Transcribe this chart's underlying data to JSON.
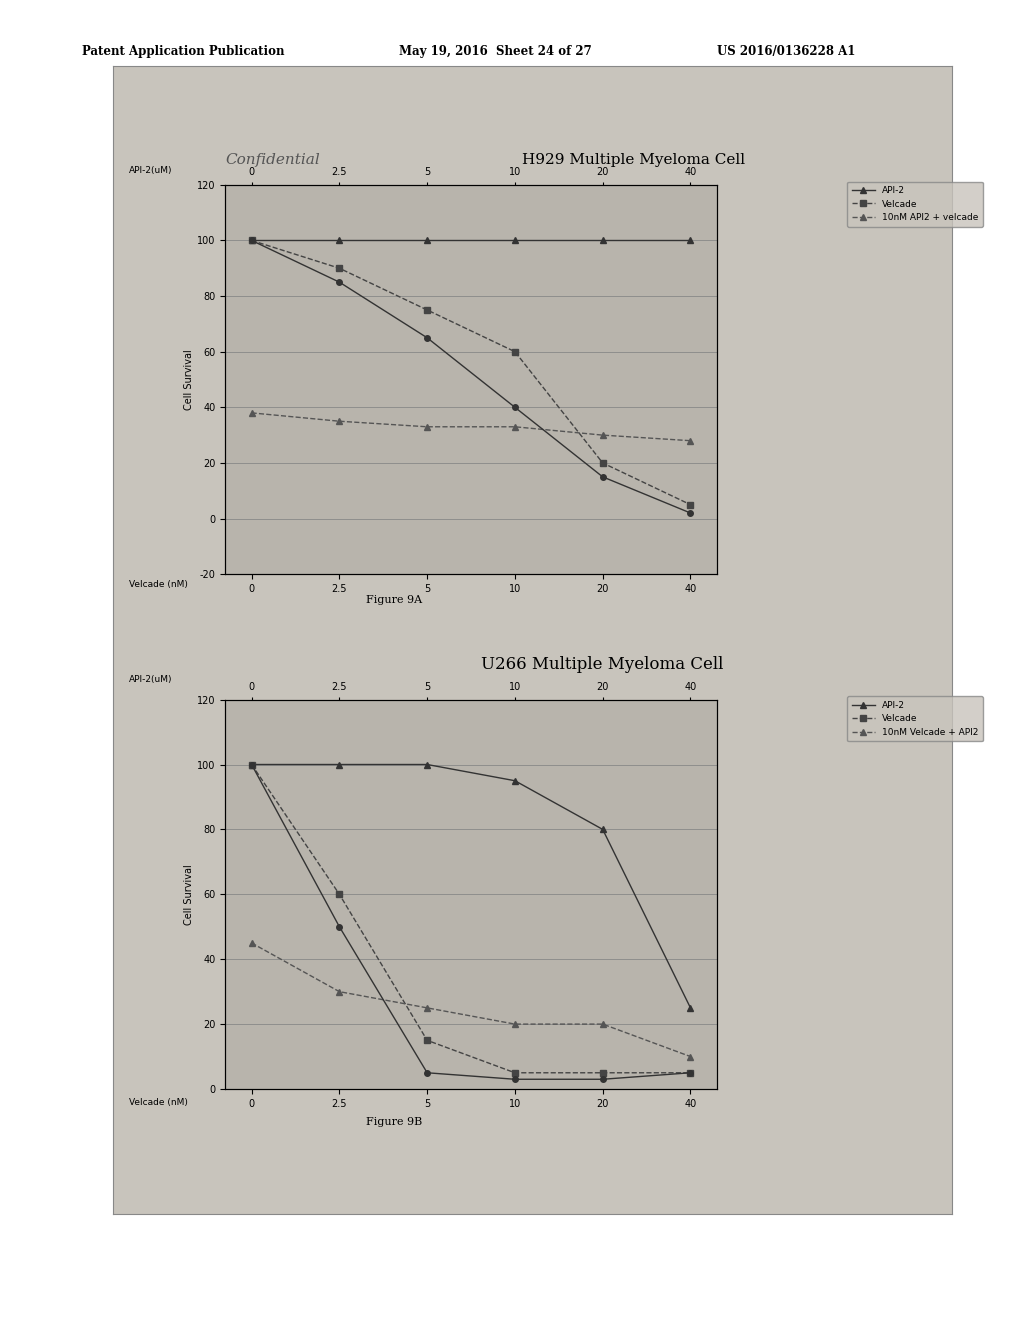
{
  "page_bg": "#ffffff",
  "outer_box_bg": "#c8c4bc",
  "chart_plot_bg": "#b8b4ac",
  "patent_line1": "Patent Application Publication",
  "patent_line2": "May 19, 2016  Sheet 24 of 27",
  "patent_line3": "US 2016/0136228 A1",
  "chart1_title": "H929 Multiple Myeloma Cell",
  "chart1_watermark": "Confidential",
  "chart2_title": "U266 Multiple Myeloma Cell",
  "fig_label1": "Figure 9A",
  "fig_label2": "Figure 9B",
  "xlabel_top": "API-2(uM)",
  "xlabel_bottom_1": "Velcade (nM)",
  "xlabel_bottom_2": "Velcade (nM)",
  "ylabel": "Cell Survival",
  "x_tick_labels": [
    "0",
    "2.5",
    "5",
    "10",
    "20",
    "40"
  ],
  "x_values": [
    0,
    1,
    2,
    3,
    4,
    5
  ],
  "ylim1": [
    -20,
    120
  ],
  "ylim2": [
    0,
    120
  ],
  "yticks1": [
    -20,
    0,
    20,
    40,
    60,
    80,
    100,
    120
  ],
  "yticks2": [
    0,
    20,
    40,
    60,
    80,
    100,
    120
  ],
  "legend_api2": "API-2",
  "legend_velcade": "Velcade",
  "legend_combo1": "10nM API2 + velcade",
  "legend_combo2": "10nM Velcade + API2",
  "chart1_api2": [
    100,
    100,
    100,
    100,
    100,
    100
  ],
  "chart1_velcade": [
    100,
    90,
    75,
    60,
    20,
    5
  ],
  "chart1_combo": [
    38,
    35,
    33,
    33,
    30,
    28
  ],
  "chart1_velcade_api2_combined": [
    100,
    85,
    65,
    40,
    15,
    2
  ],
  "chart2_api2": [
    100,
    100,
    100,
    95,
    80,
    25
  ],
  "chart2_velcade": [
    100,
    60,
    15,
    5,
    5,
    5
  ],
  "chart2_combo": [
    45,
    30,
    25,
    20,
    20,
    10
  ],
  "chart2_api2_declining": [
    100,
    50,
    5,
    3,
    3,
    5
  ]
}
